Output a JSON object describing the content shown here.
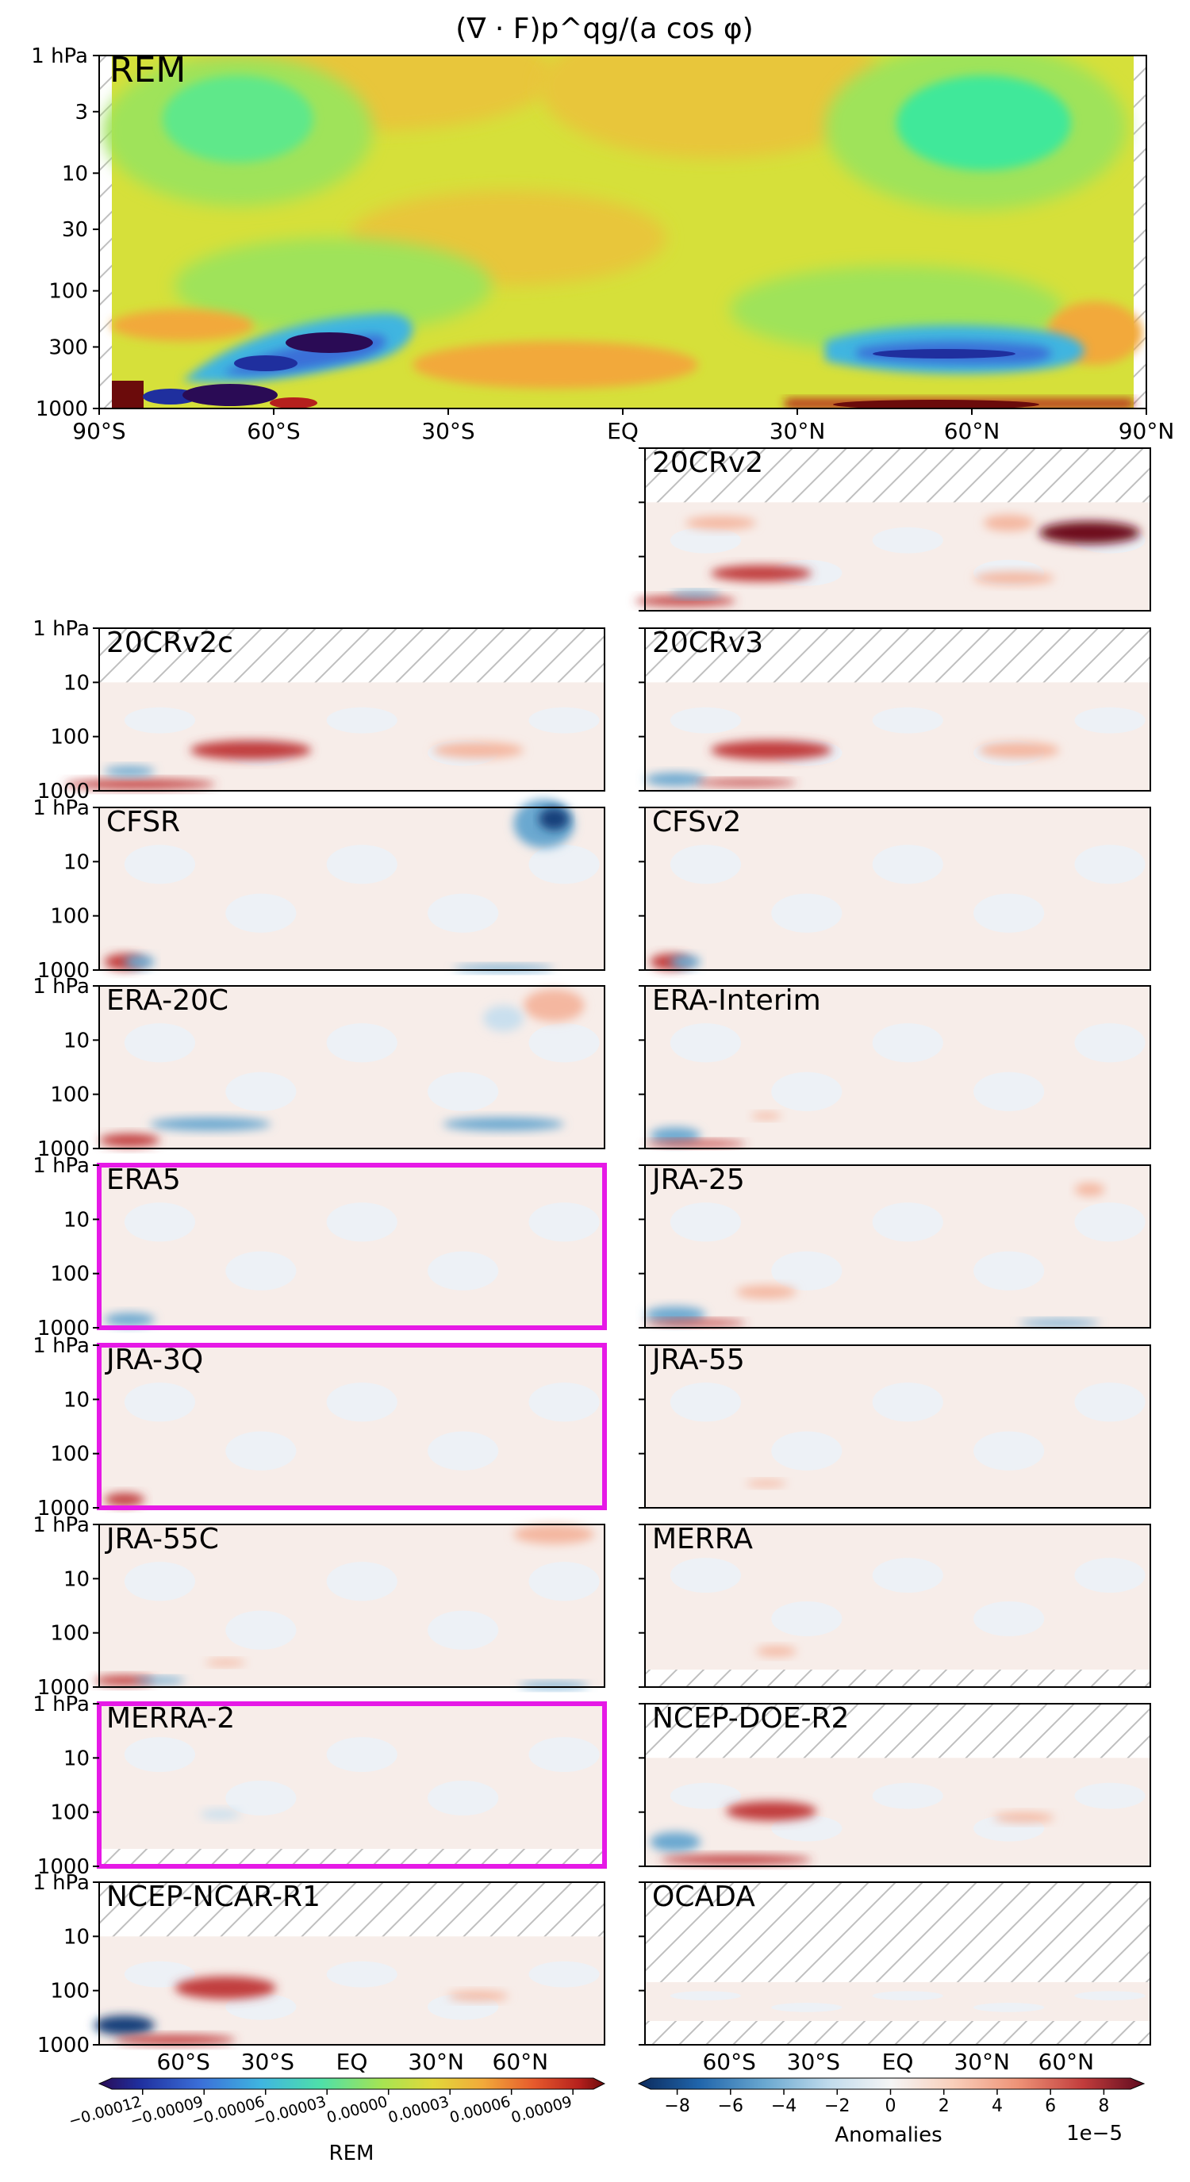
{
  "figure": {
    "title": "(∇ · F)p^qg/(a cos φ)"
  },
  "chart_data": {
    "type": "heatmap",
    "x_tick_labels": [
      "90°S",
      "60°S",
      "30°S",
      "EQ",
      "30°N",
      "60°N",
      "90°N"
    ],
    "x_tick_values": [
      -90,
      -60,
      -30,
      0,
      30,
      60,
      90
    ],
    "y_tick_labels": [
      "1 hPa",
      "3",
      "10",
      "30",
      "100",
      "300",
      "1000"
    ],
    "y_tick_values": [
      1,
      3,
      10,
      30,
      100,
      300,
      1000
    ],
    "y_scale": "log",
    "main_panel": {
      "label": "REM",
      "x_tick_labels": [
        "90°S",
        "60°S",
        "30°S",
        "EQ",
        "30°N",
        "60°N",
        "90°N"
      ],
      "y_tick_labels": [
        "1 hPa",
        "3",
        "10",
        "30",
        "100",
        "300",
        "1000"
      ]
    },
    "panels": [
      {
        "name": "20CRv2",
        "col": 1,
        "row": 0,
        "top_hpa": 10,
        "highlight": false
      },
      {
        "name": "20CRv2c",
        "col": 0,
        "row": 1,
        "top_hpa": 10,
        "highlight": false
      },
      {
        "name": "20CRv3",
        "col": 1,
        "row": 1,
        "top_hpa": 10,
        "highlight": false
      },
      {
        "name": "CFSR",
        "col": 0,
        "row": 2,
        "top_hpa": 1,
        "highlight": false
      },
      {
        "name": "CFSv2",
        "col": 1,
        "row": 2,
        "top_hpa": 1,
        "highlight": false
      },
      {
        "name": "ERA-20C",
        "col": 0,
        "row": 3,
        "top_hpa": 1,
        "highlight": false
      },
      {
        "name": "ERA-Interim",
        "col": 1,
        "row": 3,
        "top_hpa": 1,
        "highlight": false
      },
      {
        "name": "ERA5",
        "col": 0,
        "row": 4,
        "top_hpa": 1,
        "highlight": true
      },
      {
        "name": "JRA-25",
        "col": 1,
        "row": 4,
        "top_hpa": 1,
        "highlight": false
      },
      {
        "name": "JRA-3Q",
        "col": 0,
        "row": 5,
        "top_hpa": 1,
        "highlight": true
      },
      {
        "name": "JRA-55",
        "col": 1,
        "row": 5,
        "top_hpa": 1,
        "highlight": false
      },
      {
        "name": "JRA-55C",
        "col": 0,
        "row": 6,
        "top_hpa": 1,
        "highlight": false
      },
      {
        "name": "MERRA",
        "col": 1,
        "row": 6,
        "top_hpa": 1,
        "highlight": false
      },
      {
        "name": "MERRA-2",
        "col": 0,
        "row": 7,
        "top_hpa": 1,
        "highlight": true
      },
      {
        "name": "NCEP-DOE-R2",
        "col": 1,
        "row": 7,
        "top_hpa": 10,
        "highlight": false
      },
      {
        "name": "NCEP-NCAR-R1",
        "col": 0,
        "row": 8,
        "top_hpa": 10,
        "highlight": false
      },
      {
        "name": "OCADA",
        "col": 1,
        "row": 8,
        "top_hpa": 70,
        "highlight": false
      }
    ],
    "small_y_tick_labels": [
      "1 hPa",
      "10",
      "100",
      "1000"
    ],
    "bottom_x_tick_labels": [
      "60°S",
      "30°S",
      "EQ",
      "30°N",
      "60°N"
    ],
    "colorbar_rem": {
      "label": "REM",
      "tick_labels": [
        "−0.00012",
        "−0.00009",
        "−0.00006",
        "−0.00003",
        "0.00000",
        "0.00003",
        "0.00006",
        "0.00009"
      ],
      "range": [
        -0.000135,
        0.0001
      ],
      "colormap": "jet"
    },
    "colorbar_anom": {
      "label": "Anomalies",
      "tick_labels": [
        "−8",
        "−6",
        "−4",
        "−2",
        "0",
        "2",
        "4",
        "6",
        "8"
      ],
      "range": [
        -9,
        9
      ],
      "offset_text": "1e−5",
      "colormap": "RdBu_r"
    },
    "highlight_color": "#e619e6",
    "label_color_main": "#e619e6"
  }
}
